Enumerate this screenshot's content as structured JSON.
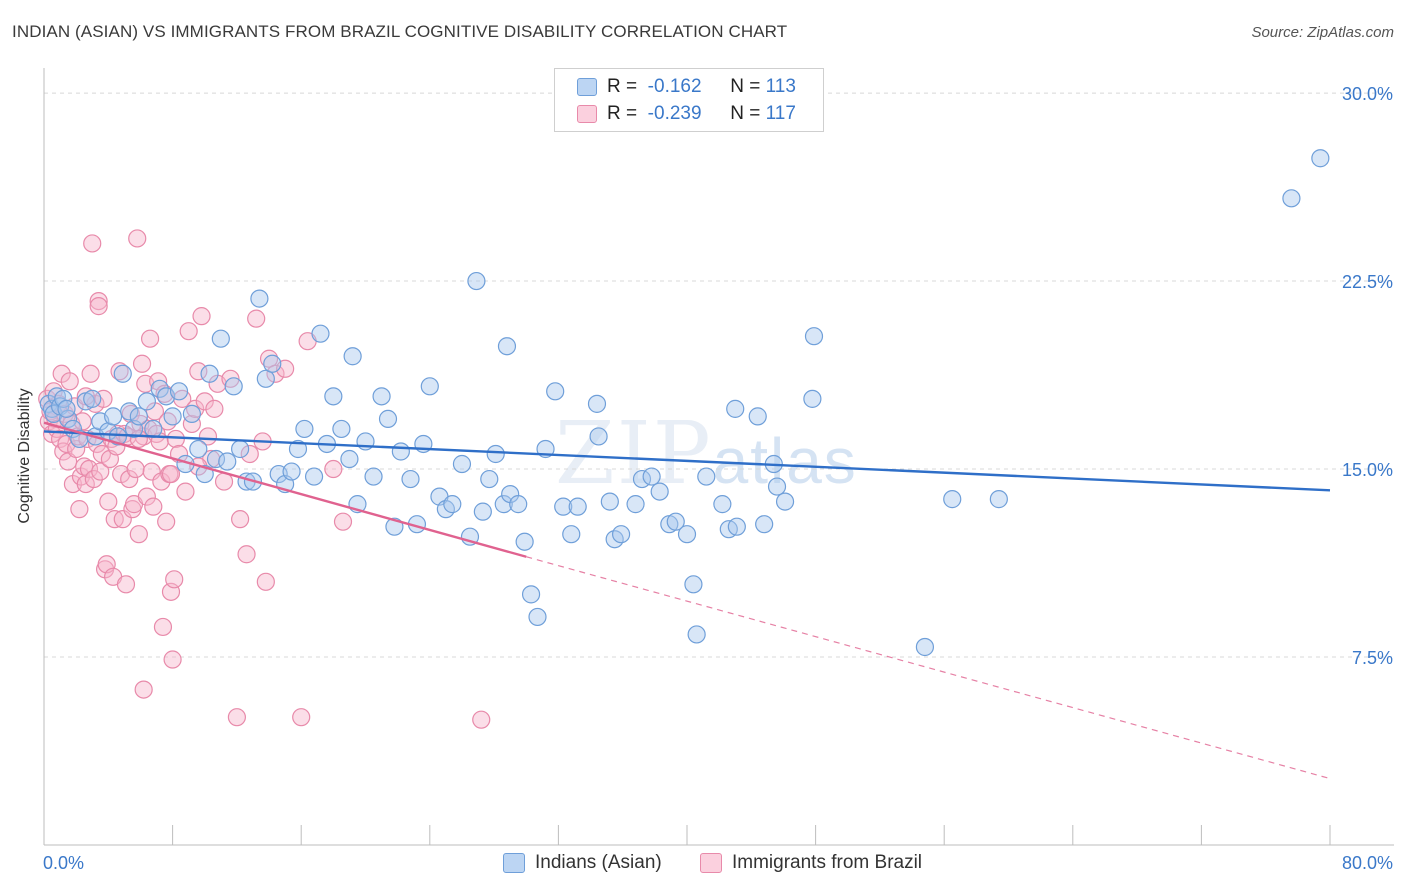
{
  "header": {
    "title": "INDIAN (ASIAN) VS IMMIGRANTS FROM BRAZIL COGNITIVE DISABILITY CORRELATION CHART",
    "source": "Source: ZipAtlas.com"
  },
  "watermark": {
    "zip": "ZIP",
    "atlas": "atlas"
  },
  "legend": {
    "rows": [
      {
        "r_label": "R =",
        "r_value": "-0.162",
        "n_label": "N =",
        "n_value": "113"
      },
      {
        "r_label": "R =",
        "r_value": "-0.239",
        "n_label": "N =",
        "n_value": "117"
      }
    ]
  },
  "bottom_legend": [
    "Indians (Asian)",
    "Immigrants from Brazil"
  ],
  "colors": {
    "blue_fill": "#a9c8ee",
    "blue_stroke": "#6f9fd9",
    "blue_line": "#2f6fc8",
    "pink_fill": "#f6b6cb",
    "pink_stroke": "#e88aaa",
    "pink_line": "#e0628f",
    "axis_label": "#3a78c9",
    "grid": "#d8d8d8"
  },
  "chart_data": {
    "type": "scatter",
    "title": "INDIAN (ASIAN) VS IMMIGRANTS FROM BRAZIL COGNITIVE DISABILITY CORRELATION CHART",
    "xlabel": "",
    "ylabel": "Cognitive Disability",
    "xlim": [
      0,
      80
    ],
    "ylim": [
      0,
      31
    ],
    "x_tick_labels": [
      "0.0%",
      "80.0%"
    ],
    "y_ticks": [
      7.5,
      15.0,
      22.5,
      30.0
    ],
    "y_tick_labels": [
      "7.5%",
      "15.0%",
      "22.5%",
      "30.0%"
    ],
    "grid": true,
    "legend_position": "top-center",
    "series": [
      {
        "name": "Indians (Asian)",
        "R": -0.162,
        "N": 113,
        "trend": {
          "x": [
            0,
            80
          ],
          "y": [
            16.5,
            14.15
          ]
        },
        "points": [
          [
            0.3,
            17.6
          ],
          [
            0.5,
            17.4
          ],
          [
            0.6,
            17.2
          ],
          [
            0.8,
            17.9
          ],
          [
            1.0,
            17.5
          ],
          [
            1.2,
            17.8
          ],
          [
            1.5,
            17.0
          ],
          [
            1.8,
            16.6
          ],
          [
            2.2,
            16.2
          ],
          [
            2.6,
            17.7
          ],
          [
            3.0,
            17.8
          ],
          [
            3.2,
            16.3
          ],
          [
            3.5,
            16.9
          ],
          [
            4.0,
            16.5
          ],
          [
            4.3,
            17.1
          ],
          [
            4.6,
            16.3
          ],
          [
            4.9,
            18.8
          ],
          [
            5.3,
            17.3
          ],
          [
            5.6,
            16.6
          ],
          [
            5.9,
            17.1
          ],
          [
            6.4,
            17.7
          ],
          [
            6.8,
            16.6
          ],
          [
            7.2,
            18.2
          ],
          [
            7.6,
            17.9
          ],
          [
            8.0,
            17.1
          ],
          [
            8.4,
            18.1
          ],
          [
            8.8,
            15.2
          ],
          [
            9.2,
            17.2
          ],
          [
            9.6,
            15.8
          ],
          [
            10.0,
            14.8
          ],
          [
            10.3,
            18.8
          ],
          [
            10.7,
            15.4
          ],
          [
            11.0,
            20.2
          ],
          [
            11.4,
            15.3
          ],
          [
            11.8,
            18.3
          ],
          [
            12.2,
            15.8
          ],
          [
            12.6,
            14.5
          ],
          [
            13.0,
            14.5
          ],
          [
            13.4,
            21.8
          ],
          [
            13.8,
            18.6
          ],
          [
            14.2,
            19.2
          ],
          [
            14.6,
            14.8
          ],
          [
            15.0,
            14.4
          ],
          [
            15.4,
            14.9
          ],
          [
            15.8,
            15.8
          ],
          [
            16.2,
            16.6
          ],
          [
            16.8,
            14.7
          ],
          [
            17.2,
            20.4
          ],
          [
            17.6,
            16.0
          ],
          [
            18.0,
            17.9
          ],
          [
            18.5,
            16.6
          ],
          [
            19.0,
            15.4
          ],
          [
            19.2,
            19.5
          ],
          [
            19.5,
            13.6
          ],
          [
            20.0,
            16.1
          ],
          [
            20.5,
            14.7
          ],
          [
            21.0,
            17.9
          ],
          [
            21.4,
            17.0
          ],
          [
            21.8,
            12.7
          ],
          [
            22.2,
            15.7
          ],
          [
            22.8,
            14.6
          ],
          [
            23.2,
            12.8
          ],
          [
            23.6,
            16.0
          ],
          [
            24.0,
            18.3
          ],
          [
            24.6,
            13.9
          ],
          [
            25.0,
            13.4
          ],
          [
            25.4,
            13.6
          ],
          [
            26.0,
            15.2
          ],
          [
            26.5,
            12.3
          ],
          [
            26.9,
            22.5
          ],
          [
            27.3,
            13.3
          ],
          [
            27.7,
            14.6
          ],
          [
            28.1,
            15.6
          ],
          [
            28.6,
            13.6
          ],
          [
            28.8,
            19.9
          ],
          [
            29.0,
            14.0
          ],
          [
            29.5,
            13.6
          ],
          [
            29.9,
            12.1
          ],
          [
            30.3,
            10.0
          ],
          [
            30.7,
            9.1
          ],
          [
            31.2,
            15.8
          ],
          [
            31.8,
            18.1
          ],
          [
            32.3,
            13.5
          ],
          [
            32.8,
            12.4
          ],
          [
            33.2,
            13.5
          ],
          [
            34.4,
            17.6
          ],
          [
            34.5,
            16.3
          ],
          [
            35.2,
            13.7
          ],
          [
            35.5,
            12.2
          ],
          [
            35.9,
            12.4
          ],
          [
            36.8,
            13.6
          ],
          [
            37.2,
            14.6
          ],
          [
            37.8,
            14.7
          ],
          [
            38.3,
            14.1
          ],
          [
            38.9,
            12.8
          ],
          [
            39.3,
            12.9
          ],
          [
            40.0,
            12.4
          ],
          [
            40.4,
            10.4
          ],
          [
            40.6,
            8.4
          ],
          [
            41.2,
            14.7
          ],
          [
            42.2,
            13.6
          ],
          [
            42.6,
            12.6
          ],
          [
            43.0,
            17.4
          ],
          [
            43.1,
            12.7
          ],
          [
            44.4,
            17.1
          ],
          [
            44.8,
            12.8
          ],
          [
            45.4,
            15.2
          ],
          [
            45.6,
            14.3
          ],
          [
            46.1,
            13.7
          ],
          [
            47.8,
            17.8
          ],
          [
            47.9,
            20.3
          ],
          [
            54.8,
            7.9
          ],
          [
            56.5,
            13.8
          ],
          [
            59.4,
            13.8
          ],
          [
            77.6,
            25.8
          ],
          [
            79.4,
            27.4
          ],
          [
            1.4,
            17.4
          ]
        ]
      },
      {
        "name": "Immigrants from Brazil",
        "R": -0.239,
        "N": 117,
        "trend": {
          "x": [
            0,
            30
          ],
          "y": [
            16.85,
            11.5
          ]
        },
        "trend_dashed": {
          "x": [
            30,
            80
          ],
          "y": [
            11.5,
            2.65
          ]
        },
        "points": [
          [
            0.2,
            17.8
          ],
          [
            0.3,
            16.9
          ],
          [
            0.4,
            17.3
          ],
          [
            0.5,
            16.4
          ],
          [
            0.6,
            18.1
          ],
          [
            0.7,
            17.0
          ],
          [
            0.8,
            16.6
          ],
          [
            0.9,
            17.6
          ],
          [
            1.0,
            16.2
          ],
          [
            1.1,
            18.8
          ],
          [
            1.2,
            15.7
          ],
          [
            1.3,
            17.2
          ],
          [
            1.4,
            16.0
          ],
          [
            1.5,
            15.3
          ],
          [
            1.6,
            18.5
          ],
          [
            1.7,
            16.8
          ],
          [
            1.8,
            14.4
          ],
          [
            1.9,
            17.5
          ],
          [
            2.0,
            15.8
          ],
          [
            2.1,
            16.3
          ],
          [
            2.2,
            13.4
          ],
          [
            2.3,
            14.7
          ],
          [
            2.4,
            16.9
          ],
          [
            2.5,
            15.1
          ],
          [
            2.6,
            14.4
          ],
          [
            2.7,
            16.2
          ],
          [
            2.8,
            15.0
          ],
          [
            2.9,
            18.8
          ],
          [
            3.0,
            24.0
          ],
          [
            3.1,
            14.6
          ],
          [
            3.2,
            17.6
          ],
          [
            3.3,
            16.0
          ],
          [
            3.4,
            21.7
          ],
          [
            3.5,
            14.9
          ],
          [
            3.6,
            15.6
          ],
          [
            3.7,
            17.8
          ],
          [
            3.8,
            11.0
          ],
          [
            3.9,
            11.2
          ],
          [
            4.0,
            13.7
          ],
          [
            4.1,
            15.4
          ],
          [
            4.2,
            16.2
          ],
          [
            4.3,
            10.7
          ],
          [
            4.4,
            13.0
          ],
          [
            4.5,
            15.9
          ],
          [
            4.6,
            16.4
          ],
          [
            4.7,
            18.9
          ],
          [
            4.8,
            14.8
          ],
          [
            4.9,
            13.0
          ],
          [
            5.0,
            16.4
          ],
          [
            5.1,
            10.4
          ],
          [
            5.2,
            16.3
          ],
          [
            5.3,
            14.6
          ],
          [
            5.4,
            17.2
          ],
          [
            5.5,
            13.4
          ],
          [
            5.6,
            13.6
          ],
          [
            5.7,
            15.0
          ],
          [
            5.8,
            24.2
          ],
          [
            5.9,
            12.4
          ],
          [
            6.0,
            16.8
          ],
          [
            6.1,
            19.2
          ],
          [
            6.2,
            16.3
          ],
          [
            6.3,
            18.4
          ],
          [
            6.4,
            13.9
          ],
          [
            6.5,
            16.6
          ],
          [
            6.6,
            20.2
          ],
          [
            6.7,
            14.9
          ],
          [
            6.8,
            13.5
          ],
          [
            6.9,
            17.3
          ],
          [
            7.0,
            16.4
          ],
          [
            7.1,
            18.5
          ],
          [
            7.2,
            16.1
          ],
          [
            7.3,
            14.5
          ],
          [
            7.4,
            8.7
          ],
          [
            7.5,
            18.0
          ],
          [
            7.6,
            12.9
          ],
          [
            7.7,
            16.9
          ],
          [
            7.8,
            14.8
          ],
          [
            7.9,
            10.1
          ],
          [
            8.0,
            7.4
          ],
          [
            8.2,
            16.2
          ],
          [
            8.4,
            15.6
          ],
          [
            8.6,
            17.8
          ],
          [
            8.8,
            14.1
          ],
          [
            9.0,
            20.5
          ],
          [
            9.2,
            16.8
          ],
          [
            9.4,
            17.4
          ],
          [
            9.6,
            18.9
          ],
          [
            9.8,
            21.1
          ],
          [
            10.0,
            17.7
          ],
          [
            10.2,
            16.3
          ],
          [
            10.4,
            15.4
          ],
          [
            10.6,
            17.4
          ],
          [
            10.8,
            18.4
          ],
          [
            11.2,
            14.5
          ],
          [
            11.6,
            18.6
          ],
          [
            12.0,
            5.1
          ],
          [
            12.2,
            13.0
          ],
          [
            12.6,
            11.6
          ],
          [
            12.8,
            15.6
          ],
          [
            13.2,
            21.0
          ],
          [
            13.6,
            16.1
          ],
          [
            13.8,
            10.5
          ],
          [
            14.0,
            19.4
          ],
          [
            14.4,
            18.8
          ],
          [
            15.0,
            19.0
          ],
          [
            16.0,
            5.1
          ],
          [
            16.4,
            20.1
          ],
          [
            18.0,
            15.0
          ],
          [
            18.6,
            12.9
          ],
          [
            27.2,
            5.0
          ],
          [
            6.2,
            6.2
          ],
          [
            8.1,
            10.6
          ],
          [
            2.6,
            17.9
          ],
          [
            3.4,
            21.5
          ],
          [
            5.9,
            16.2
          ],
          [
            7.9,
            14.8
          ],
          [
            9.6,
            15.1
          ]
        ]
      }
    ]
  }
}
